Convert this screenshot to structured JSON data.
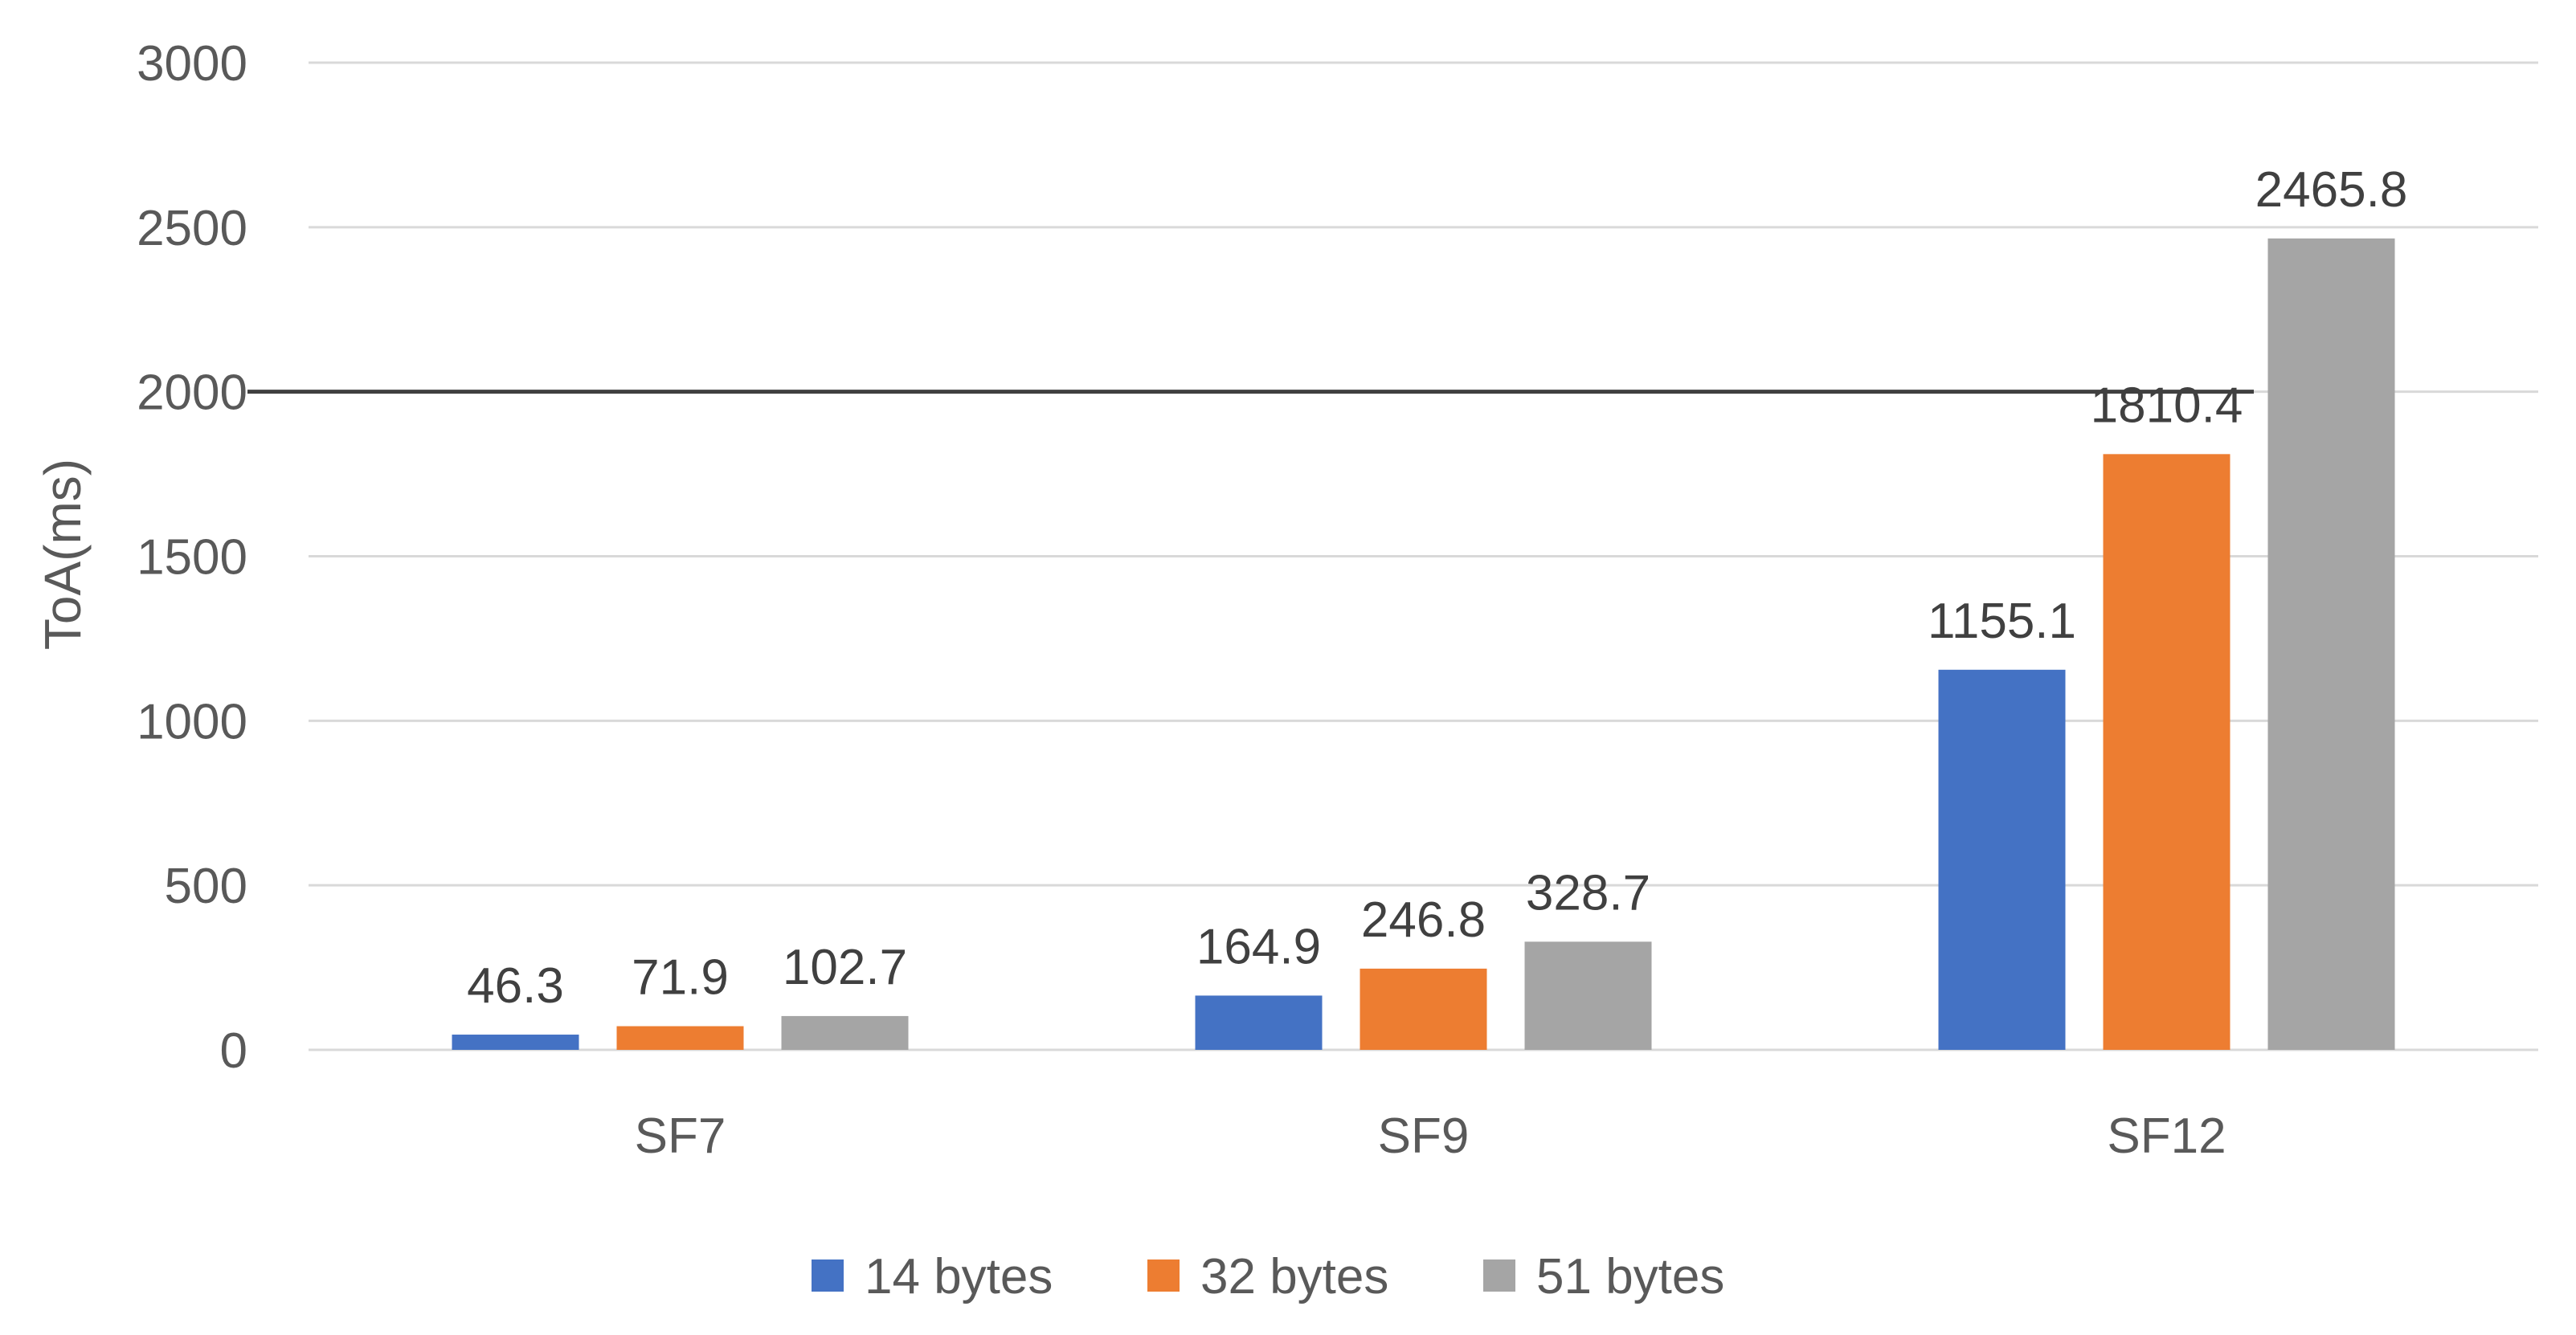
{
  "chart_data": {
    "type": "bar",
    "categories": [
      "SF7",
      "SF9",
      "SF12"
    ],
    "series": [
      {
        "name": "14 bytes",
        "values": [
          46.3,
          164.9,
          1155.1
        ],
        "color": "#4472C4"
      },
      {
        "name": "32 bytes",
        "values": [
          71.9,
          246.8,
          1810.4
        ],
        "color": "#ED7D31"
      },
      {
        "name": "51 bytes",
        "values": [
          102.7,
          328.7,
          2465.8
        ],
        "color": "#A5A5A5"
      }
    ],
    "data_labels": [
      [
        "46.3",
        "164.9",
        "1155.1"
      ],
      [
        "71.9",
        "246.8",
        "1810.4"
      ],
      [
        "102.7",
        "328.7",
        "2465.8"
      ]
    ],
    "title": "",
    "xlabel": "",
    "ylabel": "ToA(ms)",
    "ylim": [
      0,
      3000
    ],
    "yticks": [
      "0",
      "500",
      "1000",
      "1500",
      "2000",
      "2500",
      "3000"
    ],
    "grid": true,
    "legend": "bottom",
    "reference_line": {
      "value": 2000,
      "color": "#404040"
    }
  }
}
